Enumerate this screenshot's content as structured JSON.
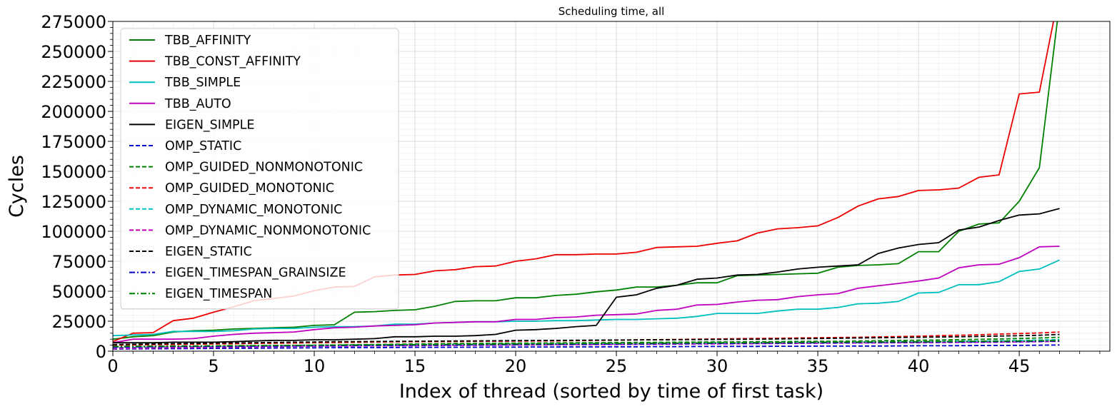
{
  "chart_data": {
    "type": "line",
    "title": "Scheduling time, all",
    "xlabel": "Index of thread (sorted by time of first task)",
    "ylabel": "Cycles",
    "xlim": [
      0,
      49.5
    ],
    "ylim": [
      0,
      275000
    ],
    "xticks": [
      0,
      5,
      10,
      15,
      20,
      25,
      30,
      35,
      40,
      45
    ],
    "yticks": [
      0,
      25000,
      50000,
      75000,
      100000,
      125000,
      150000,
      175000,
      200000,
      225000,
      250000,
      275000
    ],
    "grid": true,
    "legend_position": "top-left",
    "x": [
      0,
      1,
      2,
      3,
      4,
      5,
      6,
      7,
      8,
      9,
      10,
      11,
      12,
      13,
      14,
      15,
      16,
      17,
      18,
      19,
      20,
      21,
      22,
      23,
      24,
      25,
      26,
      27,
      28,
      29,
      30,
      31,
      32,
      33,
      34,
      35,
      36,
      37,
      38,
      39,
      40,
      41,
      42,
      43,
      44,
      45,
      46,
      47
    ],
    "series": [
      {
        "name": "TBB_AFFINITY",
        "color": "#008000",
        "dash": "solid",
        "values": [
          10000,
          12000,
          13000,
          16000,
          17000,
          17500,
          18500,
          19000,
          19500,
          20000,
          21500,
          22000,
          32500,
          33000,
          34000,
          34500,
          37500,
          41500,
          42000,
          42000,
          44500,
          44500,
          46500,
          47500,
          49500,
          51000,
          53500,
          53500,
          55000,
          57000,
          57000,
          63000,
          63500,
          64000,
          64500,
          65000,
          70000,
          71500,
          72000,
          73000,
          83000,
          83000,
          100000,
          106000,
          107000,
          125000,
          153000,
          290000
        ]
      },
      {
        "name": "TBB_CONST_AFFINITY",
        "color": "#ee0000",
        "dash": "solid",
        "values": [
          8000,
          15000,
          15500,
          25500,
          27500,
          32500,
          37000,
          42000,
          44000,
          46000,
          50500,
          53500,
          54000,
          62000,
          63500,
          64000,
          67000,
          68000,
          70500,
          71000,
          75000,
          77000,
          80500,
          80500,
          81000,
          81000,
          82500,
          86500,
          87000,
          87500,
          90000,
          92000,
          98500,
          102000,
          103000,
          104500,
          111500,
          121000,
          127000,
          129000,
          134000,
          134500,
          136000,
          145000,
          147000,
          214500,
          216000,
          300000
        ]
      },
      {
        "name": "TBB_SIMPLE",
        "color": "#00bfbf",
        "dash": "solid",
        "values": [
          13000,
          13500,
          14000,
          16500,
          16500,
          16500,
          17000,
          18500,
          19000,
          19000,
          20000,
          20500,
          20500,
          21000,
          22500,
          22500,
          23500,
          24000,
          24500,
          24500,
          25000,
          25000,
          25500,
          25500,
          26000,
          26500,
          26500,
          27000,
          27500,
          29000,
          31500,
          31500,
          31500,
          33500,
          35000,
          35000,
          36500,
          39500,
          40000,
          41500,
          48500,
          49000,
          55500,
          55500,
          58000,
          66500,
          68500,
          76000
        ]
      },
      {
        "name": "TBB_AUTO",
        "color": "#bf00bf",
        "dash": "solid",
        "values": [
          7000,
          10000,
          10000,
          10000,
          10500,
          12500,
          14000,
          15000,
          15500,
          16000,
          18000,
          19500,
          20000,
          21000,
          21500,
          22000,
          23500,
          24000,
          24500,
          24500,
          26500,
          26500,
          28000,
          28500,
          30000,
          30500,
          31000,
          34000,
          35000,
          38500,
          39000,
          41000,
          42500,
          43000,
          45500,
          47000,
          48000,
          52500,
          54500,
          56500,
          58500,
          61000,
          69500,
          72000,
          72500,
          78000,
          87000,
          87500
        ]
      },
      {
        "name": "EIGEN_SIMPLE",
        "color": "#000000",
        "dash": "solid",
        "values": [
          7000,
          7000,
          7000,
          7500,
          7500,
          7500,
          8000,
          8500,
          9000,
          9000,
          9500,
          9500,
          10000,
          10500,
          12000,
          12000,
          12500,
          12500,
          13000,
          14000,
          17500,
          18000,
          19000,
          20500,
          21500,
          45000,
          47000,
          52500,
          55000,
          60000,
          61000,
          63500,
          64000,
          66000,
          68500,
          70000,
          71000,
          72000,
          81500,
          86000,
          89000,
          90500,
          101000,
          103500,
          109000,
          113500,
          114500,
          119000
        ]
      },
      {
        "name": "OMP_STATIC",
        "color": "#0000cc",
        "dash": "dashed",
        "values": [
          1800,
          1900,
          2000,
          2100,
          2200,
          2300,
          2400,
          2500,
          2600,
          2700,
          2800,
          2900,
          3000,
          3000,
          3100,
          3200,
          3200,
          3300,
          3300,
          3400,
          3400,
          3500,
          3500,
          3600,
          3600,
          3700,
          3700,
          3800,
          3800,
          3900,
          3900,
          4000,
          4000,
          4100,
          4100,
          4200,
          4200,
          4300,
          4300,
          4400,
          4500,
          4500,
          4600,
          4700,
          4800,
          4900,
          5000,
          5200
        ]
      },
      {
        "name": "OMP_GUIDED_NONMONOTONIC",
        "color": "#008000",
        "dash": "dashed",
        "values": [
          3000,
          3200,
          3400,
          3600,
          3800,
          4000,
          4200,
          4400,
          4600,
          4800,
          5000,
          5200,
          5400,
          5600,
          5800,
          6000,
          6200,
          6400,
          6500,
          6600,
          6700,
          6800,
          6900,
          7000,
          7100,
          7200,
          7300,
          7400,
          7500,
          7600,
          7700,
          7800,
          7900,
          8000,
          8100,
          8200,
          8300,
          8500,
          8700,
          8900,
          9100,
          9300,
          9600,
          9900,
          10200,
          10600,
          11000,
          11600
        ]
      },
      {
        "name": "OMP_GUIDED_MONOTONIC",
        "color": "#ee0000",
        "dash": "dashed",
        "values": [
          5000,
          5200,
          5400,
          5600,
          5800,
          6000,
          6200,
          6400,
          6600,
          6800,
          7000,
          7200,
          7400,
          7600,
          7800,
          7900,
          8000,
          8100,
          8200,
          8300,
          8400,
          8500,
          8600,
          8800,
          9000,
          9200,
          9400,
          9600,
          9800,
          10000,
          10200,
          10400,
          10600,
          10800,
          11000,
          11200,
          11400,
          11600,
          11900,
          12200,
          12500,
          12900,
          13300,
          13700,
          14200,
          14700,
          15200,
          16000
        ]
      },
      {
        "name": "OMP_DYNAMIC_MONOTONIC",
        "color": "#00bfbf",
        "dash": "dashed",
        "values": [
          2500,
          2700,
          2900,
          3100,
          3300,
          3500,
          3700,
          3900,
          4100,
          4300,
          4500,
          4700,
          4800,
          4900,
          5000,
          5100,
          5200,
          5300,
          5400,
          5500,
          5600,
          5700,
          5800,
          5900,
          6000,
          6100,
          6200,
          6300,
          6400,
          6500,
          6600,
          6700,
          6800,
          6900,
          7000,
          7100,
          7200,
          7300,
          7400,
          7600,
          7800,
          8000,
          8200,
          8400,
          8700,
          9000,
          9300,
          9700
        ]
      },
      {
        "name": "OMP_DYNAMIC_NONMONOTONIC",
        "color": "#bf00bf",
        "dash": "dashed",
        "values": [
          2200,
          2400,
          2600,
          2800,
          3000,
          3200,
          3400,
          3600,
          3800,
          4000,
          4100,
          4200,
          4300,
          4400,
          4500,
          4600,
          4700,
          4800,
          4900,
          5000,
          5100,
          5200,
          5300,
          5400,
          5500,
          5600,
          5700,
          5800,
          5900,
          6000,
          6100,
          6200,
          6300,
          6400,
          6500,
          6600,
          6700,
          6800,
          6900,
          7000,
          7100,
          7200,
          7300,
          7400,
          7500,
          7700,
          7900,
          8200
        ]
      },
      {
        "name": "EIGEN_STATIC",
        "color": "#000000",
        "dash": "dashed",
        "values": [
          5500,
          5800,
          6000,
          6300,
          6500,
          6700,
          6900,
          7100,
          7300,
          7500,
          7700,
          7900,
          8000,
          8100,
          8200,
          8300,
          8400,
          8500,
          8600,
          8700,
          8800,
          8900,
          9000,
          9100,
          9200,
          9300,
          9400,
          9500,
          9600,
          9700,
          9800,
          9900,
          10000,
          10200,
          10400,
          10600,
          10800,
          11000,
          11200,
          11400,
          11600,
          11800,
          12000,
          12300,
          12600,
          12900,
          13300,
          14000
        ]
      },
      {
        "name": "EIGEN_TIMESPAN_GRAINSIZE",
        "color": "#0000cc",
        "dash": "dashdot",
        "values": [
          3500,
          3600,
          3700,
          3800,
          3900,
          4000,
          4100,
          4200,
          4300,
          4400,
          4500,
          4600,
          4700,
          4800,
          4900,
          5000,
          5100,
          5200,
          5300,
          5400,
          5500,
          5600,
          5700,
          5800,
          5900,
          6000,
          6100,
          6200,
          6300,
          6400,
          6500,
          6600,
          6700,
          6800,
          6900,
          7000,
          7100,
          7200,
          7300,
          7400,
          7500,
          7600,
          7700,
          7800,
          7900,
          8000,
          8200,
          8500
        ]
      },
      {
        "name": "EIGEN_TIMESPAN",
        "color": "#008000",
        "dash": "dashdot",
        "values": [
          4000,
          4100,
          4200,
          4300,
          4400,
          4500,
          4600,
          4700,
          4800,
          4900,
          5000,
          5100,
          5200,
          5300,
          5400,
          5500,
          5600,
          5700,
          5800,
          5900,
          6000,
          6100,
          6200,
          6300,
          6400,
          6500,
          6600,
          6700,
          6800,
          6900,
          7000,
          7100,
          7200,
          7300,
          7400,
          7500,
          7600,
          7700,
          7800,
          7900,
          8000,
          8100,
          8200,
          8300,
          8400,
          8500,
          8700,
          9000
        ]
      }
    ]
  }
}
